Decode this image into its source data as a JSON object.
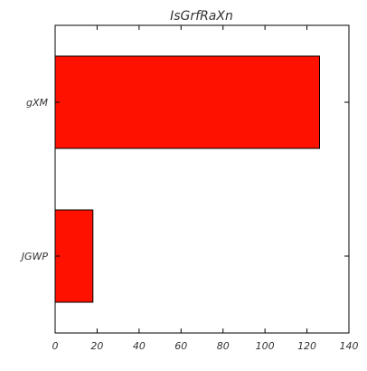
{
  "chart_data": {
    "type": "bar",
    "orientation": "horizontal",
    "title": "IsGrfRaXn",
    "xlabel": "",
    "ylabel": "",
    "categories": [
      "gXM",
      "JGWP"
    ],
    "values": [
      126,
      18
    ],
    "xlim": [
      0,
      140
    ],
    "xticks": [
      "0",
      "20",
      "40",
      "60",
      "80",
      "100",
      "120",
      "140"
    ],
    "grid": false,
    "bar_color": "#ff1100",
    "bar_edge_color": "#000000"
  }
}
